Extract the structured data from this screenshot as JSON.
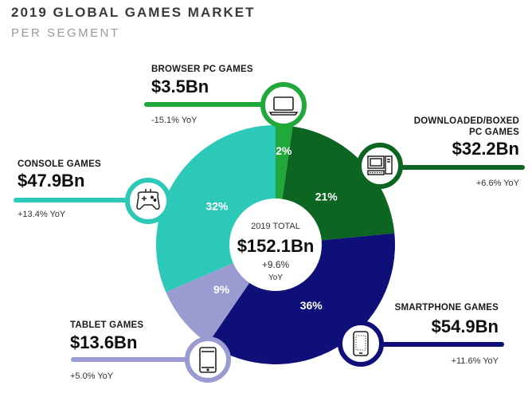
{
  "header": {
    "title": "2019 GLOBAL GAMES MARKET",
    "subtitle": "PER SEGMENT"
  },
  "center": {
    "label": "2019 TOTAL",
    "value": "$152.1Bn",
    "growth": "+9.6%",
    "growth_unit": "YoY"
  },
  "segments": [
    {
      "key": "browser",
      "name": "BROWSER PC GAMES",
      "value_text": "$3.5Bn",
      "yoy": "-15.1% YoY",
      "pct_label": "2%",
      "color": "#21a83a",
      "icon": "laptop-icon"
    },
    {
      "key": "downloaded",
      "name_line1": "DOWNLOADED/BOXED",
      "name_line2": "PC GAMES",
      "value_text": "$32.2Bn",
      "yoy": "+6.6% YoY",
      "pct_label": "21%",
      "color": "#0c6621",
      "icon": "desktop-pc-icon"
    },
    {
      "key": "smartphone",
      "name": "SMARTPHONE GAMES",
      "value_text": "$54.9Bn",
      "yoy": "+11.6% YoY",
      "pct_label": "36%",
      "color": "#0f0f7a",
      "icon": "smartphone-icon"
    },
    {
      "key": "tablet",
      "name": "TABLET GAMES",
      "value_text": "$13.6Bn",
      "yoy": "+5.0% YoY",
      "pct_label": "9%",
      "color": "#9a9bd0",
      "icon": "tablet-icon"
    },
    {
      "key": "console",
      "name": "CONSOLE GAMES",
      "value_text": "$47.9Bn",
      "yoy": "+13.4% YoY",
      "pct_label": "32%",
      "color": "#2cc8b8",
      "icon": "gamepad-icon"
    }
  ],
  "chart_data": {
    "type": "pie",
    "title": "2019 GLOBAL GAMES MARKET",
    "subtitle": "PER SEGMENT",
    "unit": "$Bn",
    "total": 152.1,
    "categories": [
      "BROWSER PC GAMES",
      "DOWNLOADED/BOXED PC GAMES",
      "SMARTPHONE GAMES",
      "TABLET GAMES",
      "CONSOLE GAMES"
    ],
    "values": [
      3.5,
      32.2,
      54.9,
      13.6,
      47.9
    ],
    "percent_labels": [
      2,
      21,
      36,
      9,
      32
    ],
    "yoy_percent": [
      -15.1,
      6.6,
      11.6,
      5.0,
      13.4
    ],
    "colors": [
      "#21a83a",
      "#0c6621",
      "#0f0f7a",
      "#9a9bd0",
      "#2cc8b8"
    ]
  }
}
